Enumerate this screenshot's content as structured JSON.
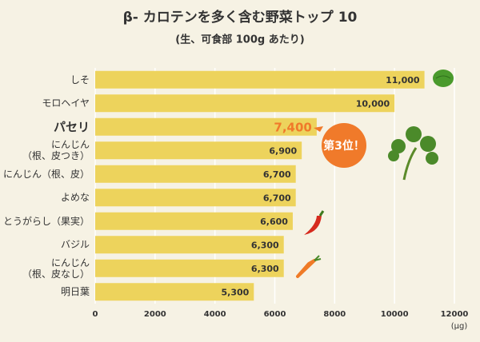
{
  "chart_data": {
    "type": "hbar",
    "title": "β- カロテンを多く含む野菜トップ 10",
    "subtitle": "(生、可食部 100g あたり)",
    "x_label": "(μg)",
    "categories": [
      "しそ",
      "モロヘイヤ",
      "パセリ",
      "にんじん\n（根、皮つき）",
      "にんじん（根、皮）",
      "よめな",
      "とうがらし（果実）",
      "バジル",
      "にんじん\n（根、皮なし）",
      "明日葉"
    ],
    "values": [
      11000,
      10000,
      7400,
      6900,
      6700,
      6700,
      6600,
      6300,
      6300,
      5300
    ],
    "value_labels": [
      "11,000",
      "10,000",
      "7,400",
      "6,900",
      "6,700",
      "6,700",
      "6,600",
      "6,300",
      "6,300",
      "5,300"
    ],
    "color": "#edd35c",
    "highlight_index": 2,
    "highlight_color": "#f07a2a",
    "xlim": [
      0,
      12000
    ],
    "xticks": [
      0,
      2000,
      4000,
      6000,
      8000,
      10000,
      12000
    ],
    "grid": true,
    "annotation": "第3位！"
  }
}
